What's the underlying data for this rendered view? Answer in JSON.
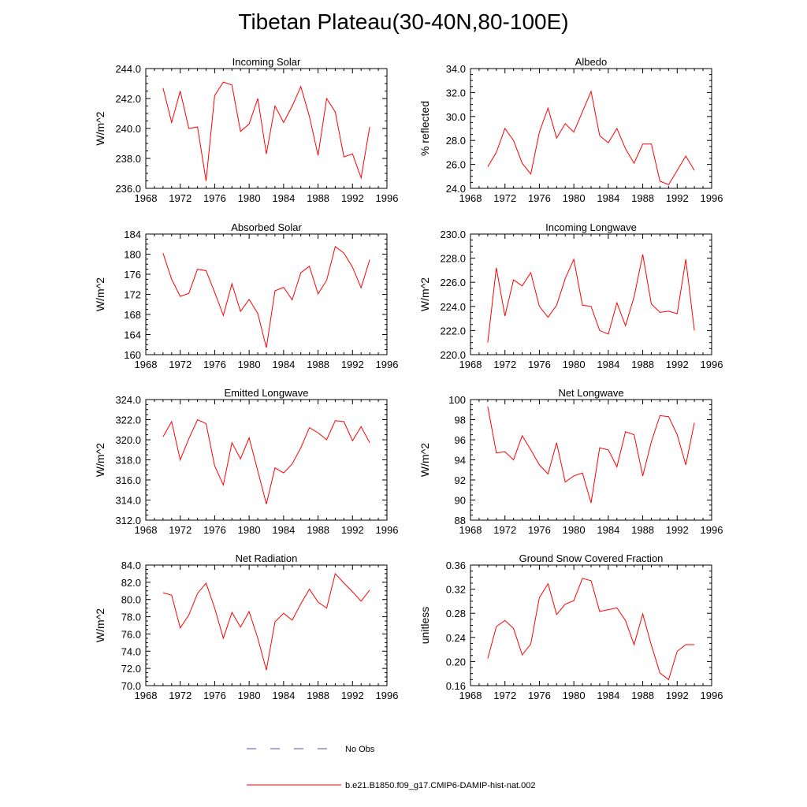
{
  "title": "Tibetan Plateau(30-40N,80-100E)",
  "colors": {
    "model": "#ff0000",
    "obs": "#4d4dcc",
    "axis": "#000000"
  },
  "legend": {
    "obs_label": "No Obs",
    "model_label": "b.e21.B1850.f09_g17.CMIP6-DAMIP-hist-nat.002"
  },
  "chart_data": [
    {
      "type": "line",
      "title": "Incoming Solar",
      "ylabel": "W/m^2",
      "xlim": [
        1968,
        1996
      ],
      "xticks": [
        "1968",
        "1972",
        "1976",
        "1980",
        "1984",
        "1988",
        "1992",
        "1996"
      ],
      "ylim": [
        236.0,
        244.0
      ],
      "yticks": [
        "236.0",
        "238.0",
        "240.0",
        "242.0",
        "244.0"
      ],
      "x": [
        1970,
        1971,
        1972,
        1973,
        1974,
        1975,
        1976,
        1977,
        1978,
        1979,
        1980,
        1981,
        1982,
        1983,
        1984,
        1985,
        1986,
        1987,
        1988,
        1989,
        1990,
        1991,
        1992,
        1993,
        1994
      ],
      "series": [
        {
          "values": [
            242.7,
            240.4,
            242.5,
            240.0,
            240.1,
            236.5,
            242.2,
            243.1,
            242.9,
            239.8,
            240.3,
            242.0,
            238.3,
            241.5,
            240.4,
            241.5,
            242.8,
            240.8,
            238.2,
            242.0,
            241.1,
            238.1,
            238.3,
            236.7,
            240.1
          ]
        }
      ]
    },
    {
      "type": "line",
      "title": "Albedo",
      "ylabel": "% reflected",
      "xlim": [
        1968,
        1996
      ],
      "xticks": [
        "1968",
        "1972",
        "1976",
        "1980",
        "1984",
        "1988",
        "1992",
        "1996"
      ],
      "ylim": [
        24.0,
        34.0
      ],
      "yticks": [
        "24.0",
        "26.0",
        "28.0",
        "30.0",
        "32.0",
        "34.0"
      ],
      "x": [
        1970,
        1971,
        1972,
        1973,
        1974,
        1975,
        1976,
        1977,
        1978,
        1979,
        1980,
        1981,
        1982,
        1983,
        1984,
        1985,
        1986,
        1987,
        1988,
        1989,
        1990,
        1991,
        1992,
        1993,
        1994
      ],
      "series": [
        {
          "values": [
            25.8,
            27.0,
            29.0,
            28.0,
            26.1,
            25.2,
            28.7,
            30.7,
            28.2,
            29.4,
            28.7,
            30.4,
            32.1,
            28.4,
            27.8,
            29.0,
            27.3,
            26.1,
            27.7,
            27.7,
            24.6,
            24.3,
            25.5,
            26.7,
            25.5
          ]
        }
      ]
    },
    {
      "type": "line",
      "title": "Absorbed Solar",
      "ylabel": "W/m^2",
      "xlim": [
        1968,
        1996
      ],
      "xticks": [
        "1968",
        "1972",
        "1976",
        "1980",
        "1984",
        "1988",
        "1992",
        "1996"
      ],
      "ylim": [
        160,
        184
      ],
      "yticks": [
        "160",
        "164",
        "168",
        "172",
        "176",
        "180",
        "184"
      ],
      "x": [
        1970,
        1971,
        1972,
        1973,
        1974,
        1975,
        1976,
        1977,
        1978,
        1979,
        1980,
        1981,
        1982,
        1983,
        1984,
        1985,
        1986,
        1987,
        1988,
        1989,
        1990,
        1991,
        1992,
        1993,
        1994
      ],
      "series": [
        {
          "values": [
            180.2,
            175.0,
            171.6,
            172.2,
            177.0,
            176.7,
            172.4,
            167.8,
            174.1,
            168.6,
            171.0,
            168.2,
            161.4,
            172.7,
            173.4,
            170.9,
            176.3,
            177.6,
            172.1,
            174.8,
            181.5,
            180.2,
            177.4,
            173.3,
            178.9
          ]
        }
      ]
    },
    {
      "type": "line",
      "title": "Incoming Longwave",
      "ylabel": "W/m^2",
      "xlim": [
        1968,
        1996
      ],
      "xticks": [
        "1968",
        "1972",
        "1976",
        "1980",
        "1984",
        "1988",
        "1992",
        "1996"
      ],
      "ylim": [
        220.0,
        230.0
      ],
      "yticks": [
        "220.0",
        "222.0",
        "224.0",
        "226.0",
        "228.0",
        "230.0"
      ],
      "x": [
        1970,
        1971,
        1972,
        1973,
        1974,
        1975,
        1976,
        1977,
        1978,
        1979,
        1980,
        1981,
        1982,
        1983,
        1984,
        1985,
        1986,
        1987,
        1988,
        1989,
        1990,
        1991,
        1992,
        1993,
        1994
      ],
      "series": [
        {
          "values": [
            221.0,
            227.2,
            223.2,
            226.2,
            225.7,
            226.8,
            224.0,
            223.1,
            224.1,
            226.3,
            227.9,
            224.1,
            224.0,
            222.0,
            221.7,
            224.3,
            222.4,
            224.8,
            228.3,
            224.2,
            223.5,
            223.6,
            223.4,
            227.9,
            222.0
          ]
        }
      ]
    },
    {
      "type": "line",
      "title": "Emitted Longwave",
      "ylabel": "W/m^2",
      "xlim": [
        1968,
        1996
      ],
      "xticks": [
        "1968",
        "1972",
        "1976",
        "1980",
        "1984",
        "1988",
        "1992",
        "1996"
      ],
      "ylim": [
        312.0,
        324.0
      ],
      "yticks": [
        "312.0",
        "314.0",
        "316.0",
        "318.0",
        "320.0",
        "322.0",
        "324.0"
      ],
      "x": [
        1970,
        1971,
        1972,
        1973,
        1974,
        1975,
        1976,
        1977,
        1978,
        1979,
        1980,
        1981,
        1982,
        1983,
        1984,
        1985,
        1986,
        1987,
        1988,
        1989,
        1990,
        1991,
        1992,
        1993,
        1994
      ],
      "series": [
        {
          "values": [
            320.3,
            321.8,
            318.0,
            320.1,
            322.0,
            321.6,
            317.4,
            315.5,
            319.7,
            318.1,
            320.2,
            316.9,
            313.6,
            317.2,
            316.7,
            317.6,
            319.2,
            321.2,
            320.7,
            320.0,
            321.9,
            321.8,
            319.9,
            321.3,
            319.7
          ]
        }
      ]
    },
    {
      "type": "line",
      "title": "Net Longwave",
      "ylabel": "W/m^2",
      "xlim": [
        1968,
        1996
      ],
      "xticks": [
        "1968",
        "1972",
        "1976",
        "1980",
        "1984",
        "1988",
        "1992",
        "1996"
      ],
      "ylim": [
        88,
        100
      ],
      "yticks": [
        "88",
        "90",
        "92",
        "94",
        "96",
        "98",
        "100"
      ],
      "x": [
        1970,
        1971,
        1972,
        1973,
        1974,
        1975,
        1976,
        1977,
        1978,
        1979,
        1980,
        1981,
        1982,
        1983,
        1984,
        1985,
        1986,
        1987,
        1988,
        1989,
        1990,
        1991,
        1992,
        1993,
        1994
      ],
      "series": [
        {
          "values": [
            99.3,
            94.7,
            94.8,
            94.0,
            96.4,
            95.0,
            93.5,
            92.6,
            95.7,
            91.8,
            92.4,
            92.7,
            89.7,
            95.2,
            95.0,
            93.3,
            96.8,
            96.5,
            92.4,
            95.8,
            98.4,
            98.3,
            96.5,
            93.5,
            97.7
          ]
        }
      ]
    },
    {
      "type": "line",
      "title": "Net Radiation",
      "ylabel": "W/m^2",
      "xlim": [
        1968,
        1996
      ],
      "xticks": [
        "1968",
        "1972",
        "1976",
        "1980",
        "1984",
        "1988",
        "1992",
        "1996"
      ],
      "ylim": [
        70.0,
        84.0
      ],
      "yticks": [
        "70.0",
        "72.0",
        "74.0",
        "76.0",
        "78.0",
        "80.0",
        "82.0",
        "84.0"
      ],
      "x": [
        1970,
        1971,
        1972,
        1973,
        1974,
        1975,
        1976,
        1977,
        1978,
        1979,
        1980,
        1981,
        1982,
        1983,
        1984,
        1985,
        1986,
        1987,
        1988,
        1989,
        1990,
        1991,
        1992,
        1993,
        1994
      ],
      "series": [
        {
          "values": [
            80.8,
            80.5,
            76.7,
            78.2,
            80.7,
            81.9,
            79.0,
            75.5,
            78.5,
            76.8,
            78.6,
            75.5,
            71.8,
            77.4,
            78.4,
            77.6,
            79.5,
            81.2,
            79.7,
            79.0,
            83.0,
            81.9,
            80.9,
            79.8,
            81.1
          ]
        }
      ]
    },
    {
      "type": "line",
      "title": "Ground Snow Covered Fraction",
      "ylabel": "unitless",
      "xlim": [
        1968,
        1996
      ],
      "xticks": [
        "1968",
        "1972",
        "1976",
        "1980",
        "1984",
        "1988",
        "1992",
        "1996"
      ],
      "ylim": [
        0.16,
        0.36
      ],
      "yticks": [
        "0.16",
        "0.20",
        "0.24",
        "0.28",
        "0.32",
        "0.36"
      ],
      "x": [
        1970,
        1971,
        1972,
        1973,
        1974,
        1975,
        1976,
        1977,
        1978,
        1979,
        1980,
        1981,
        1982,
        1983,
        1984,
        1985,
        1986,
        1987,
        1988,
        1989,
        1990,
        1991,
        1992,
        1993,
        1994
      ],
      "series": [
        {
          "values": [
            0.205,
            0.258,
            0.268,
            0.255,
            0.211,
            0.229,
            0.306,
            0.329,
            0.278,
            0.295,
            0.301,
            0.338,
            0.334,
            0.283,
            0.286,
            0.289,
            0.268,
            0.228,
            0.279,
            0.227,
            0.181,
            0.17,
            0.217,
            0.228,
            0.228
          ]
        }
      ]
    }
  ]
}
